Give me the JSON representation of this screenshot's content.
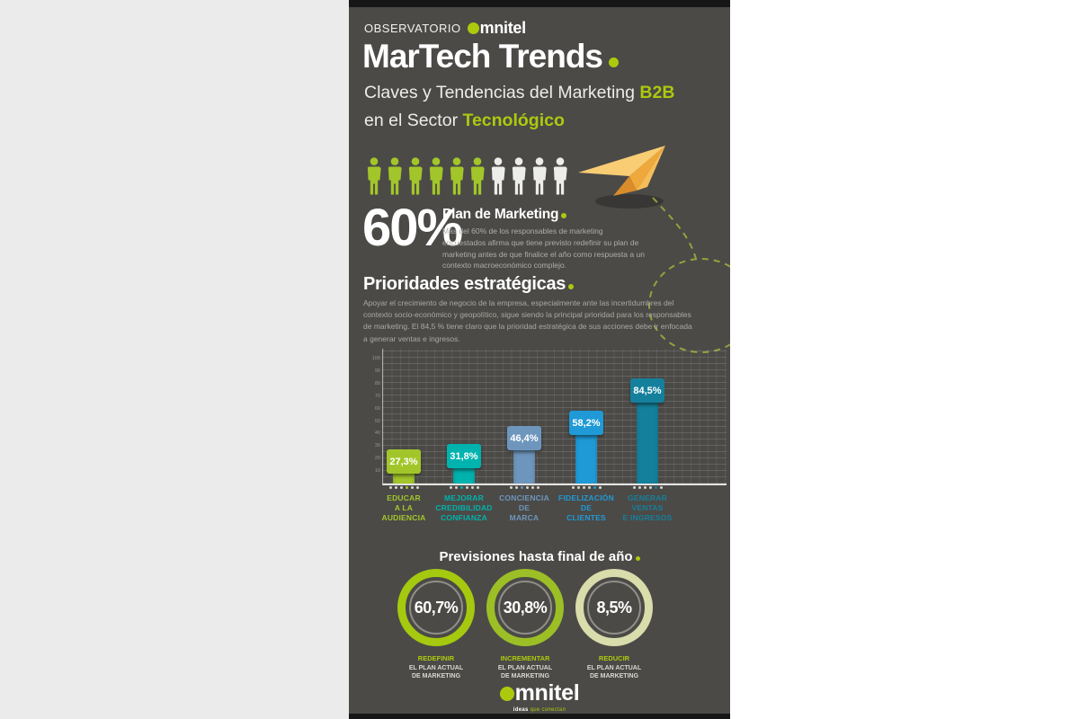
{
  "colors": {
    "accent_green": "#adc90e",
    "poster_bg": "#4b4a47",
    "left_margin": "#ebebeb",
    "right_margin": "#ffffff",
    "person_filled": "#a2c62a",
    "person_empty": "#edeeea"
  },
  "header": {
    "observatorio": "OBSERVATORIO",
    "logo_text": "mnitel",
    "title": "MarTech Trends",
    "subtitle1_text": "Claves y Tendencias del Marketing",
    "subtitle1_accent": "B2B",
    "subtitle2_text": "en el Sector",
    "subtitle2_accent": "Tecnológico"
  },
  "plan": {
    "percent": "60%",
    "title": "Plan de Marketing",
    "body": "Más del 60% de los responsables de marketing encuestados afirma que tiene previsto redefinir su plan de marketing antes de que finalice el año como respuesta a un contexto macroeconómico complejo.",
    "people_total": 10,
    "people_filled": 6
  },
  "priorities": {
    "title": "Prioridades estratégicas",
    "body": "Apoyar el crecimiento de negocio de la empresa, especialmente ante las incertidumbres del contexto socio-económico y geopolítico, sigue siendo la principal prioridad para los responsables de marketing. El 84,5 % tiene claro que la prioridad estratégica de sus acciones debe ir enfocada a generar ventas e ingresos."
  },
  "chart_data": {
    "type": "bar",
    "title": "Prioridades estratégicas",
    "categories": [
      "EDUCAR A LA AUDIENCIA",
      "MEJORAR CREDIBILIDAD CONFIANZA",
      "CONCIENCIA DE MARCA",
      "FIDELIZACIÓN DE CLIENTES",
      "GENERAR VENTAS E INGRESOS"
    ],
    "categories_lines": [
      [
        "EDUCAR",
        "A LA",
        "AUDIENCIA"
      ],
      [
        "MEJORAR",
        "CREDIBILIDAD",
        "CONFIANZA"
      ],
      [
        "CONCIENCIA",
        "DE",
        "MARCA"
      ],
      [
        "FIDELIZACIÓN",
        "DE",
        "CLIENTES"
      ],
      [
        "GENERAR",
        "VENTAS",
        "E INGRESOS"
      ]
    ],
    "values": [
      27.3,
      31.8,
      46.4,
      58.2,
      84.5
    ],
    "value_labels": [
      "27,3%",
      "31,8%",
      "46,4%",
      "58,2%",
      "84,5%"
    ],
    "bar_colors": [
      "#a2c62a",
      "#00b3ae",
      "#6e96bd",
      "#1f9ad6",
      "#15809c"
    ],
    "xlabel": "",
    "ylabel": "",
    "ylim": [
      0,
      100
    ],
    "yticks": [
      100,
      90,
      80,
      70,
      60,
      50,
      40,
      30,
      20,
      10
    ],
    "grid": true,
    "dot_count": 6,
    "dot_accent_index": [
      3,
      2,
      2,
      4,
      4
    ]
  },
  "forecast": {
    "title": "Previsiones hasta final de año",
    "items": [
      {
        "value": "60,7%",
        "pct": 60.7,
        "line1": "REDEFINIR",
        "line2": "EL PLAN ACTUAL",
        "line3": "DE MARKETING",
        "ring": "#a5c90f"
      },
      {
        "value": "30,8%",
        "pct": 30.8,
        "line1": "INCREMENTAR",
        "line2": "EL PLAN ACTUAL",
        "line3": "DE MARKETING",
        "ring": "#9cbf25"
      },
      {
        "value": "8,5%",
        "pct": 8.5,
        "line1": "REDUCIR",
        "line2": "EL PLAN ACTUAL",
        "line3": "DE MARKETING",
        "ring": "#d9dcab"
      }
    ]
  },
  "footer": {
    "logo_text": "mnitel",
    "tagline_white": "ideas",
    "tagline_green": "que conectan"
  }
}
